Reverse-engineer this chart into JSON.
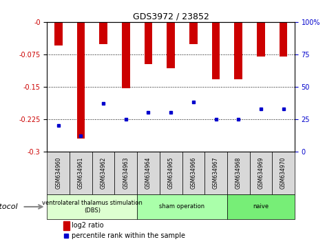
{
  "title": "GDS3972 / 23852",
  "samples": [
    "GSM634960",
    "GSM634961",
    "GSM634962",
    "GSM634963",
    "GSM634964",
    "GSM634965",
    "GSM634966",
    "GSM634967",
    "GSM634968",
    "GSM634969",
    "GSM634970"
  ],
  "log2_ratio": [
    -0.055,
    -0.27,
    -0.052,
    -0.153,
    -0.098,
    -0.108,
    -0.052,
    -0.133,
    -0.133,
    -0.08,
    -0.08
  ],
  "percentile_rank": [
    20,
    12,
    37,
    25,
    30,
    30,
    38,
    25,
    25,
    33,
    33
  ],
  "ylim_left": [
    -0.3,
    0
  ],
  "ylim_right": [
    0,
    100
  ],
  "yticks_left": [
    0,
    -0.075,
    -0.15,
    -0.225,
    -0.3
  ],
  "yticks_right": [
    100,
    75,
    50,
    25,
    0
  ],
  "bar_color": "#cc0000",
  "dot_color": "#0000cc",
  "protocol_groups": [
    {
      "label": "ventrolateral thalamus stimulation\n(DBS)",
      "start": 0,
      "end": 3,
      "color": "#ddffd0"
    },
    {
      "label": "sham operation",
      "start": 4,
      "end": 7,
      "color": "#aaffaa"
    },
    {
      "label": "naive",
      "start": 8,
      "end": 10,
      "color": "#77ee77"
    }
  ],
  "legend_bar_label": "log2 ratio",
  "legend_dot_label": "percentile rank within the sample",
  "left_axis_color": "#cc0000",
  "right_axis_color": "#0000cc",
  "protocol_label": "protocol",
  "bg_color": "#ffffff",
  "sample_box_color": "#d8d8d8"
}
